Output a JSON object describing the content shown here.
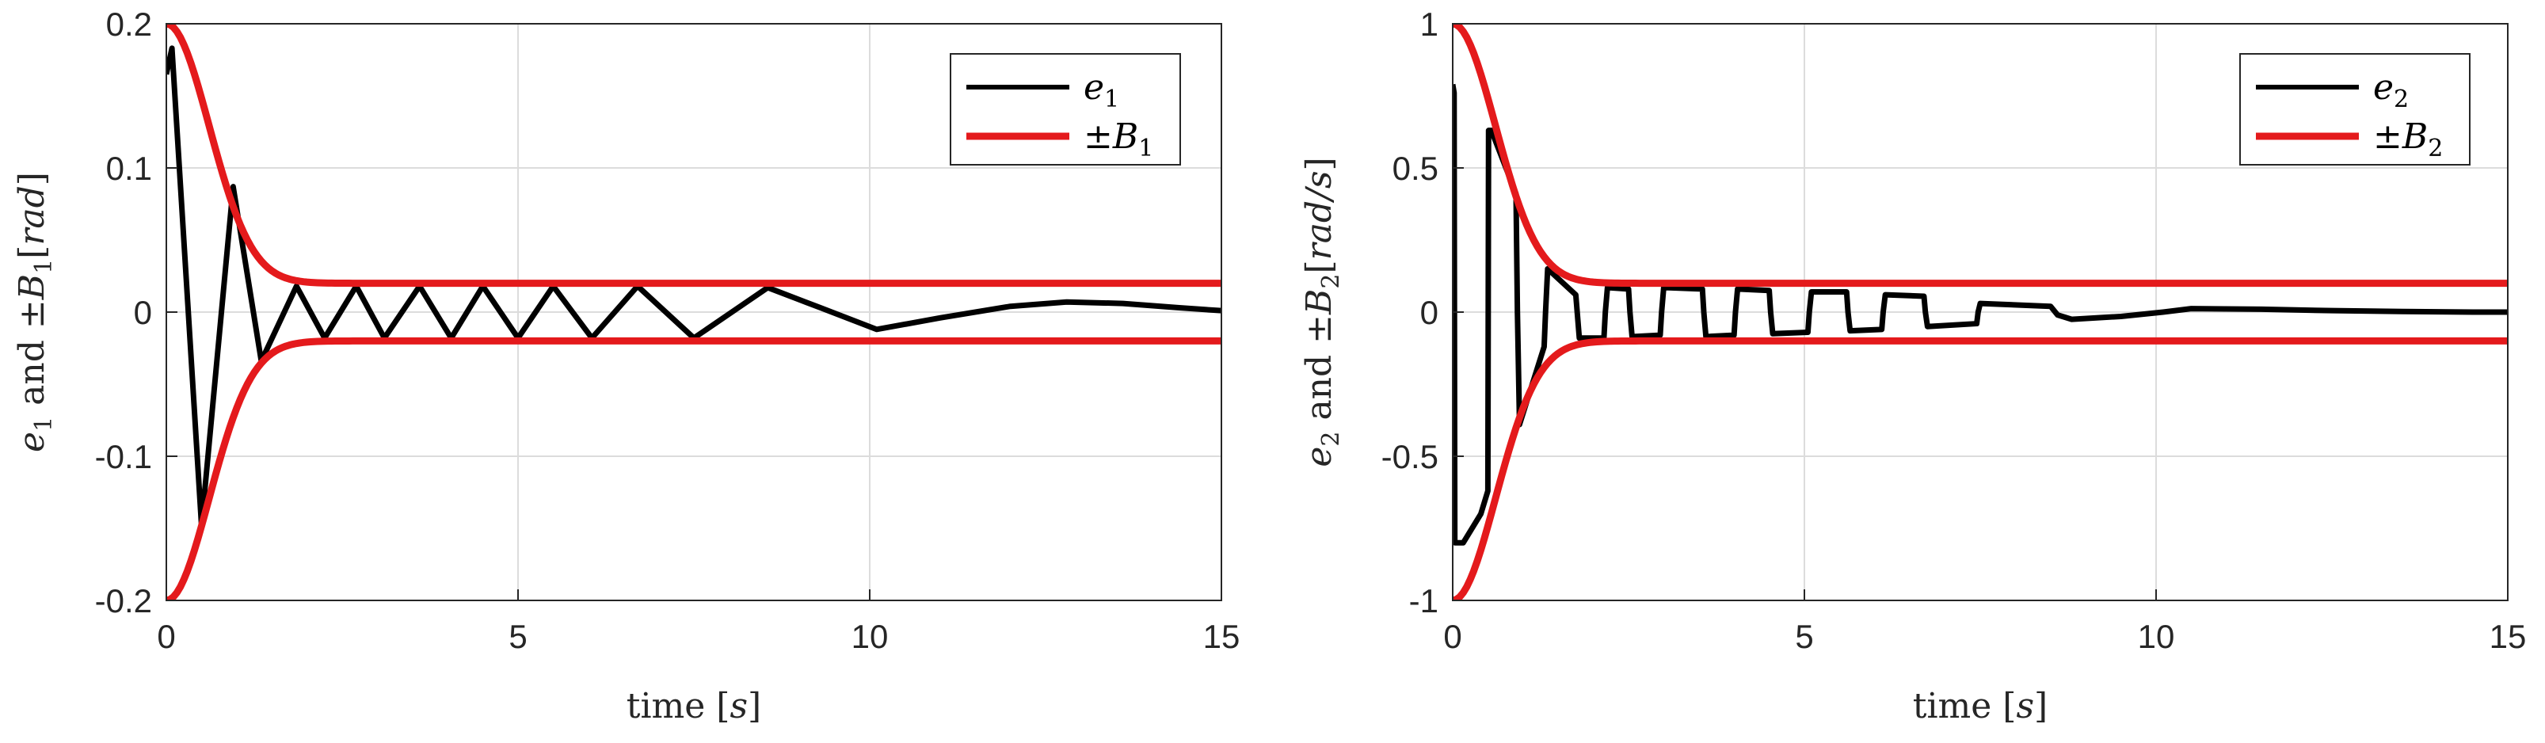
{
  "chart_data": [
    {
      "type": "line",
      "xlabel": {
        "text": "time ",
        "unit": "s"
      },
      "ylabel": {
        "var": "e",
        "sub": "1",
        "mid": " and ±",
        "bvar": "B",
        "bsub": "1",
        "unit": "rad"
      },
      "xlim": [
        0,
        15
      ],
      "ylim": [
        -0.2,
        0.2
      ],
      "xticks": [
        0,
        5,
        10,
        15
      ],
      "yticks": [
        -0.2,
        -0.1,
        0,
        0.1,
        0.2
      ],
      "ytick_labels": [
        "-0.2",
        "-0.1",
        "0",
        "0.1",
        "0.2"
      ],
      "grid": true,
      "legend": "top-right",
      "series": [
        {
          "name": "e1",
          "name_base": "e",
          "name_sub": "1",
          "color": "#000000",
          "x": [
            0,
            0.08,
            0.5,
            0.95,
            1.35,
            1.85,
            2.25,
            2.7,
            3.1,
            3.6,
            4.05,
            4.5,
            5.0,
            5.5,
            6.05,
            6.7,
            7.5,
            8.55,
            9.3,
            10.1,
            11.0,
            12.0,
            12.8,
            13.6,
            14.4,
            15.0
          ],
          "y": [
            0.165,
            0.183,
            -0.148,
            0.087,
            -0.034,
            0.018,
            -0.018,
            0.018,
            -0.018,
            0.018,
            -0.018,
            0.018,
            -0.018,
            0.018,
            -0.018,
            0.018,
            -0.018,
            0.017,
            0.003,
            -0.012,
            -0.004,
            0.004,
            0.007,
            0.006,
            0.003,
            0.001
          ]
        },
        {
          "name": "±B1",
          "name_base": "±B",
          "name_sub": "1",
          "color": "#e41a1c",
          "bound": {
            "b0": 0.2,
            "binf": 0.02,
            "rate": 1.35
          }
        }
      ]
    },
    {
      "type": "line",
      "xlabel": {
        "text": "time ",
        "unit": "s"
      },
      "ylabel": {
        "var": "e",
        "sub": "2",
        "mid": " and ±",
        "bvar": "B",
        "bsub": "2",
        "unit": "rad/s"
      },
      "xlim": [
        0,
        15
      ],
      "ylim": [
        -1,
        1
      ],
      "xticks": [
        0,
        5,
        10,
        15
      ],
      "yticks": [
        -1,
        -0.5,
        0,
        0.5,
        1
      ],
      "ytick_labels": [
        "-1",
        "-0.5",
        "0",
        "0.5",
        "1"
      ],
      "grid": true,
      "legend": "top-right",
      "series": [
        {
          "name": "e2",
          "name_base": "e",
          "name_sub": "2",
          "color": "#000000",
          "x": [
            0,
            0.02,
            0.03,
            0.15,
            0.4,
            0.5,
            0.51,
            0.55,
            0.9,
            0.92,
            0.95,
            1.3,
            1.32,
            1.35,
            1.75,
            1.77,
            1.8,
            2.15,
            2.17,
            2.2,
            2.5,
            2.52,
            2.55,
            2.95,
            2.97,
            3.0,
            3.55,
            3.57,
            3.6,
            4.0,
            4.02,
            4.05,
            4.5,
            4.52,
            4.55,
            5.05,
            5.07,
            5.1,
            5.6,
            5.62,
            5.65,
            6.1,
            6.12,
            6.15,
            6.7,
            6.72,
            6.75,
            7.45,
            7.47,
            7.5,
            8.5,
            8.6,
            8.8,
            9.5,
            10.1,
            10.5,
            11.5,
            12.5,
            13.5,
            14.5,
            15.0
          ],
          "y": [
            0.79,
            0.76,
            -0.8,
            -0.8,
            -0.7,
            -0.62,
            0.63,
            0.63,
            0.41,
            0.0,
            -0.39,
            -0.12,
            0.0,
            0.15,
            0.06,
            0.0,
            -0.09,
            -0.09,
            0.0,
            0.085,
            0.08,
            0.0,
            -0.085,
            -0.08,
            0.0,
            0.085,
            0.08,
            0.0,
            -0.085,
            -0.08,
            0.0,
            0.08,
            0.075,
            0.0,
            -0.075,
            -0.07,
            0.0,
            0.07,
            0.07,
            0.0,
            -0.065,
            -0.06,
            0.0,
            0.06,
            0.055,
            0.0,
            -0.05,
            -0.04,
            0.0,
            0.03,
            0.02,
            -0.01,
            -0.025,
            -0.015,
            0.0,
            0.012,
            0.01,
            0.005,
            0.002,
            0.0,
            0.0
          ]
        },
        {
          "name": "±B2",
          "name_base": "±B",
          "name_sub": "2",
          "color": "#e41a1c",
          "bound": {
            "b0": 1.0,
            "binf": 0.1,
            "rate": 1.35
          }
        }
      ]
    }
  ]
}
